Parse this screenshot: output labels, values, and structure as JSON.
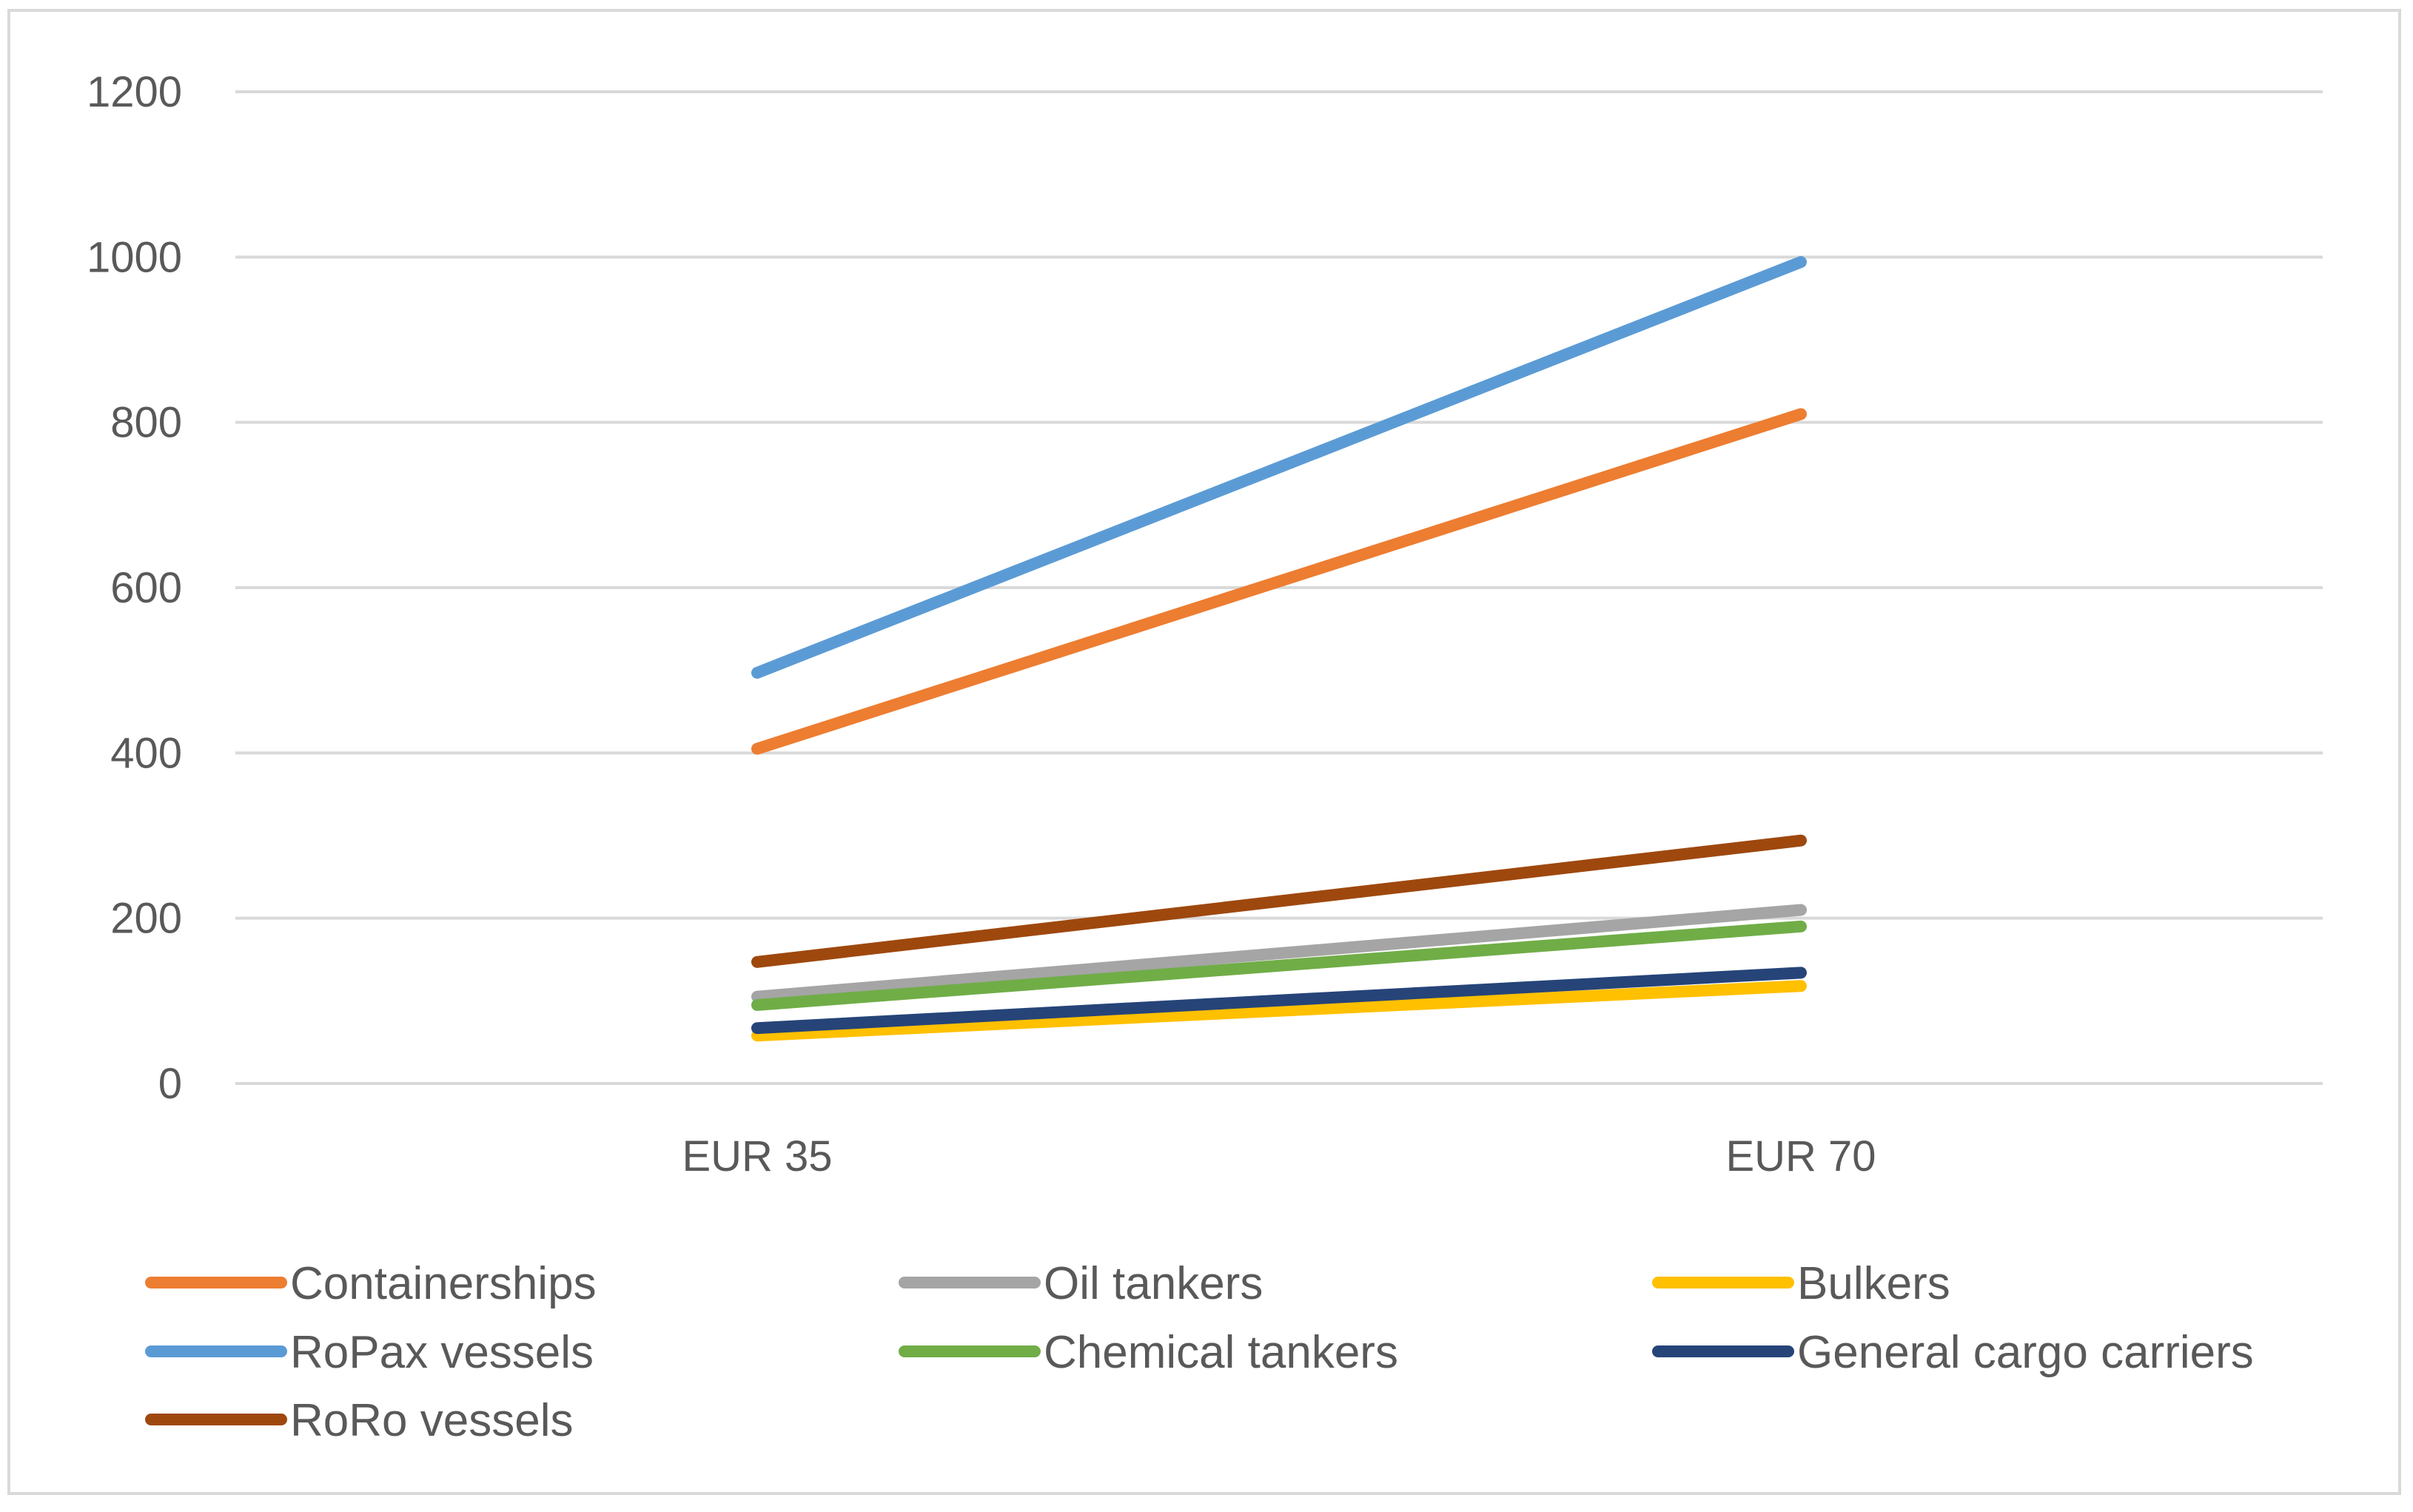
{
  "chart_data": {
    "type": "line",
    "title": "",
    "xlabel": "",
    "ylabel": "",
    "categories": [
      "EUR 35",
      "EUR 70"
    ],
    "ylim": [
      0,
      1200
    ],
    "yticks": [
      0,
      200,
      400,
      600,
      800,
      1000,
      1200
    ],
    "grid": true,
    "legend_position": "bottom",
    "series": [
      {
        "name": "Containerships",
        "values": [
          405,
          810
        ],
        "color": "#ed7d31"
      },
      {
        "name": "Oil tankers",
        "values": [
          105,
          210
        ],
        "color": "#a5a5a5"
      },
      {
        "name": "Bulkers",
        "values": [
          58,
          118
        ],
        "color": "#ffc000"
      },
      {
        "name": "RoPax vessels",
        "values": [
          497,
          994
        ],
        "color": "#5b9bd5"
      },
      {
        "name": "Chemical tankers",
        "values": [
          95,
          190
        ],
        "color": "#70ad47"
      },
      {
        "name": "General cargo carriers",
        "values": [
          67,
          134
        ],
        "color": "#264478"
      },
      {
        "name": "RoRo vessels",
        "values": [
          147,
          294
        ],
        "color": "#9e480e"
      }
    ]
  }
}
